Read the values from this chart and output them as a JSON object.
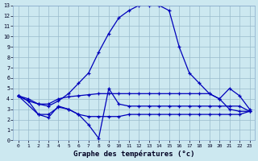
{
  "title": "Graphe des températures (°c)",
  "background_color": "#cce8f0",
  "grid_color": "#99bbcc",
  "line_color": "#0000bb",
  "xlim": [
    -0.5,
    23.5
  ],
  "ylim": [
    0,
    13
  ],
  "xticks": [
    0,
    1,
    2,
    3,
    4,
    5,
    6,
    7,
    8,
    9,
    10,
    11,
    12,
    13,
    14,
    15,
    16,
    17,
    18,
    19,
    20,
    21,
    22,
    23
  ],
  "yticks": [
    0,
    1,
    2,
    3,
    4,
    5,
    6,
    7,
    8,
    9,
    10,
    11,
    12,
    13
  ],
  "series": [
    {
      "x": [
        0,
        1,
        2,
        3,
        4,
        5,
        6,
        7,
        8,
        9,
        10,
        11,
        12,
        13,
        14,
        15,
        16,
        17,
        18,
        19,
        20,
        21,
        22,
        23
      ],
      "y": [
        4.3,
        4.0,
        3.5,
        3.3,
        3.8,
        4.5,
        5.5,
        6.5,
        8.5,
        10.3,
        11.8,
        12.5,
        13.0,
        13.0,
        13.0,
        12.5,
        9.0,
        6.5,
        5.5,
        4.5,
        4.0,
        3.0,
        2.8,
        2.8
      ]
    },
    {
      "x": [
        0,
        1,
        2,
        3,
        4,
        5,
        6,
        7,
        8,
        9,
        10,
        11,
        12,
        13,
        14,
        15,
        16,
        17,
        18,
        19,
        20,
        21,
        22,
        23
      ],
      "y": [
        4.3,
        3.8,
        3.5,
        3.5,
        4.0,
        4.2,
        4.3,
        4.4,
        4.5,
        4.5,
        4.5,
        4.5,
        4.5,
        4.5,
        4.5,
        4.5,
        4.5,
        4.5,
        4.5,
        4.5,
        4.0,
        5.0,
        4.3,
        3.0
      ]
    },
    {
      "x": [
        0,
        1,
        2,
        3,
        4,
        5,
        6,
        7,
        8,
        9,
        10,
        11,
        12,
        13,
        14,
        15,
        16,
        17,
        18,
        19,
        20,
        21,
        22,
        23
      ],
      "y": [
        4.3,
        3.8,
        2.5,
        2.5,
        3.2,
        3.0,
        2.5,
        2.3,
        2.3,
        2.3,
        2.3,
        2.5,
        2.5,
        2.5,
        2.5,
        2.5,
        2.5,
        2.5,
        2.5,
        2.5,
        2.5,
        2.5,
        2.5,
        2.8
      ]
    },
    {
      "x": [
        0,
        2,
        3,
        4,
        5,
        6,
        7,
        8,
        9,
        10,
        11,
        12,
        13,
        14,
        15,
        16,
        17,
        18,
        19,
        20,
        21,
        22,
        23
      ],
      "y": [
        4.3,
        2.5,
        2.2,
        3.3,
        3.0,
        2.5,
        1.5,
        0.2,
        5.0,
        3.5,
        3.3,
        3.3,
        3.3,
        3.3,
        3.3,
        3.3,
        3.3,
        3.3,
        3.3,
        3.3,
        3.3,
        3.3,
        2.8
      ]
    }
  ]
}
